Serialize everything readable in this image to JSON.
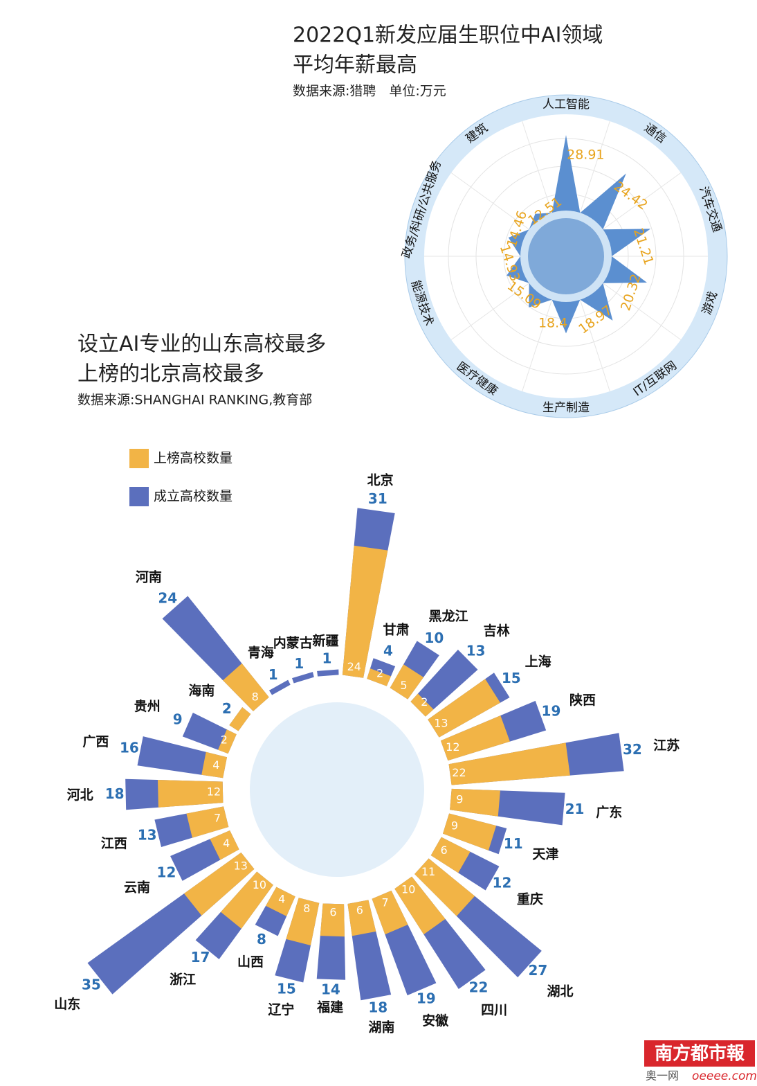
{
  "chart_data": [
    {
      "type": "radar",
      "title": [
        "2022Q1新发应届生职位中AI领域",
        "平均年薪最高"
      ],
      "subtitle": "数据来源:猎聘　单位:万元",
      "categories": [
        "人工智能",
        "通信",
        "汽车交通",
        "游戏",
        "IT/互联网",
        "生产制造",
        "医疗健康",
        "能源技术",
        "政务/科研/公共服务",
        "建筑"
      ],
      "values": [
        28.91,
        24.42,
        21.21,
        20.32,
        18.97,
        18.4,
        15.09,
        14.93,
        14.46,
        12.51
      ],
      "color": "#5b8fd0",
      "label_color": "#e8a41e"
    },
    {
      "type": "radialbar",
      "title": [
        "设立AI专业的山东高校最多",
        "上榜的北京高校最多"
      ],
      "subtitle": "数据来源:SHANGHAI RANKING,教育部",
      "categories": [
        "北京",
        "甘肃",
        "黑龙江",
        "吉林",
        "上海",
        "陕西",
        "江苏",
        "广东",
        "天津",
        "重庆",
        "湖北",
        "四川",
        "安徽",
        "湖南",
        "福建",
        "辽宁",
        "山西",
        "浙江",
        "山东",
        "云南",
        "江西",
        "河北",
        "广西",
        "贵州",
        "海南",
        "河南",
        "青海",
        "内蒙古",
        "新疆"
      ],
      "series": [
        {
          "name": "上榜高校数量",
          "color": "#f2b446",
          "values": [
            24,
            2,
            5,
            2,
            13,
            12,
            22,
            9,
            9,
            6,
            11,
            10,
            7,
            6,
            6,
            8,
            4,
            10,
            13,
            4,
            7,
            12,
            4,
            2,
            2,
            8,
            null,
            null,
            null
          ]
        },
        {
          "name": "成立高校数量",
          "color": "#5b6fbd",
          "values": [
            31,
            4,
            10,
            13,
            15,
            19,
            32,
            21,
            11,
            12,
            27,
            22,
            19,
            18,
            14,
            15,
            8,
            17,
            35,
            12,
            13,
            18,
            16,
            9,
            2,
            24,
            1,
            1,
            1
          ]
        }
      ]
    }
  ],
  "footer": {
    "brand": "南方都市報",
    "site": "奥一网",
    "url": "oeeee.com"
  }
}
